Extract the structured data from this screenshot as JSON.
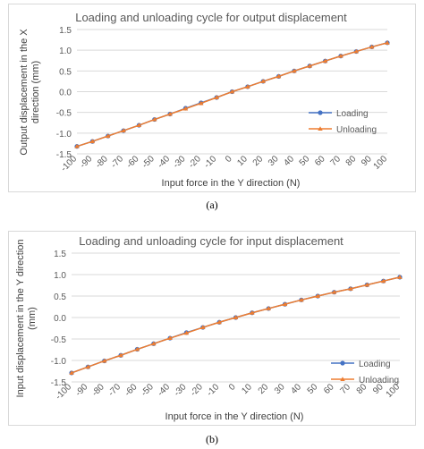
{
  "colors": {
    "loading": "#4472c4",
    "unloading": "#ed7d31",
    "grid": "#d9d9d9",
    "text": "#595959"
  },
  "captions": [
    "(a)",
    "(b)"
  ],
  "chart_data": [
    {
      "type": "line",
      "title": "Loading and unloading cycle for output displacement",
      "xlabel": "Input force in the Y direction (N)",
      "ylabel": "Output displacement in the X direction (mm)",
      "ylabel_lines": [
        "Output displacement in the X",
        "direction (mm)"
      ],
      "categories": [
        "-100",
        "-90",
        "-80",
        "-70",
        "-60",
        "-50",
        "-40",
        "-30",
        "-20",
        "-10",
        "0",
        "10",
        "20",
        "30",
        "40",
        "50",
        "60",
        "70",
        "80",
        "90",
        "100"
      ],
      "yticks": [
        "1.5",
        "1.0",
        "0.5",
        "0.0",
        "-0.5",
        "-1.0",
        "-1.5"
      ],
      "ylim": [
        -1.5,
        1.5
      ],
      "grid": true,
      "legend": "right",
      "series": [
        {
          "name": "Loading",
          "values": [
            -1.32,
            -1.2,
            -1.07,
            -0.94,
            -0.81,
            -0.67,
            -0.54,
            -0.4,
            -0.27,
            -0.14,
            0.0,
            0.12,
            0.25,
            0.37,
            0.5,
            0.62,
            0.74,
            0.86,
            0.97,
            1.08,
            1.18
          ]
        },
        {
          "name": "Unloading",
          "values": [
            -1.32,
            -1.2,
            -1.07,
            -0.94,
            -0.81,
            -0.67,
            -0.54,
            -0.41,
            -0.28,
            -0.14,
            0.0,
            0.12,
            0.25,
            0.37,
            0.5,
            0.62,
            0.74,
            0.86,
            0.97,
            1.08,
            1.18
          ]
        }
      ]
    },
    {
      "type": "line",
      "title": "Loading and unloading cycle for input displacement",
      "xlabel": "Input force in the Y direction (N)",
      "ylabel": "Input displacement in the Y direction (mm)",
      "ylabel_lines": [
        "Input displacement in the Y direction",
        "(mm)"
      ],
      "categories": [
        "-100",
        "-90",
        "-80",
        "-70",
        "-60",
        "-50",
        "-40",
        "-30",
        "-20",
        "-10",
        "0",
        "10",
        "20",
        "30",
        "40",
        "50",
        "60",
        "70",
        "80",
        "90",
        "100"
      ],
      "yticks": [
        "1.5",
        "1.0",
        "0.5",
        "0.0",
        "-0.5",
        "-1.0",
        "-1.5"
      ],
      "ylim": [
        -1.5,
        1.5
      ],
      "grid": true,
      "legend": "right",
      "series": [
        {
          "name": "Loading",
          "values": [
            -1.29,
            -1.15,
            -1.01,
            -0.88,
            -0.74,
            -0.61,
            -0.48,
            -0.35,
            -0.23,
            -0.11,
            0.0,
            0.11,
            0.21,
            0.31,
            0.41,
            0.5,
            0.59,
            0.67,
            0.76,
            0.85,
            0.94
          ]
        },
        {
          "name": "Unloading",
          "values": [
            -1.29,
            -1.15,
            -1.01,
            -0.88,
            -0.74,
            -0.61,
            -0.48,
            -0.36,
            -0.23,
            -0.11,
            0.0,
            0.11,
            0.21,
            0.31,
            0.41,
            0.5,
            0.59,
            0.67,
            0.76,
            0.85,
            0.94
          ]
        }
      ]
    }
  ]
}
